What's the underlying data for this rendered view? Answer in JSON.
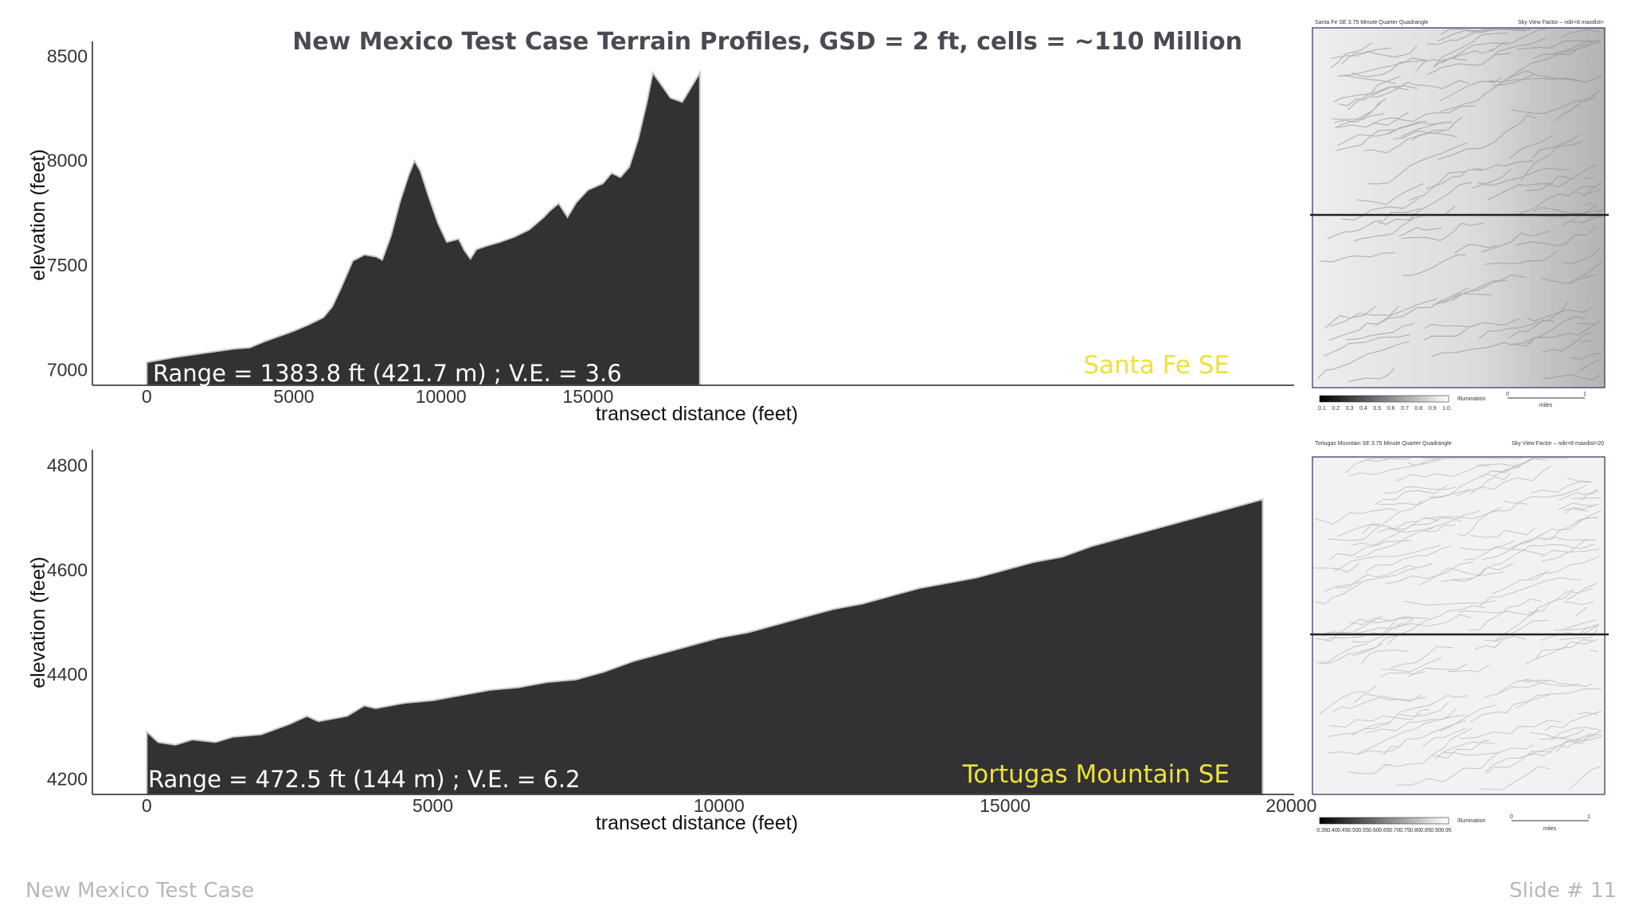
{
  "slide": {
    "title": "New Mexico Test Case Terrain Profiles, GSD = 2 ft, cells = ~110 Million",
    "footer_left": "New Mexico Test Case",
    "footer_right": "Slide #  11"
  },
  "colors": {
    "profile_fill": "#323234",
    "label_yellow": "#f0e03a",
    "map_frame_blue": "#3b4fd6"
  },
  "chart_data": [
    {
      "type": "area",
      "site": "Santa Fe SE",
      "range_text": "Range = 1383.8 ft (421.7 m) ;  V.E. = 3.6",
      "xlabel": "transect distance (feet)",
      "ylabel": "elevation (feet)",
      "xlim": [
        -1850,
        39000
      ],
      "ylim": [
        6925,
        8570
      ],
      "xticks": [
        0,
        5000,
        10000,
        15000
      ],
      "yticks": [
        7000,
        7500,
        8000,
        8500
      ],
      "x": [
        0,
        1000,
        2000,
        3000,
        3500,
        4000,
        5000,
        5500,
        6000,
        6300,
        6600,
        7000,
        7400,
        7800,
        8000,
        8300,
        8600,
        8900,
        9100,
        9300,
        9600,
        9900,
        10200,
        10600,
        10800,
        11000,
        11200,
        11500,
        12000,
        12500,
        13000,
        13500,
        13700,
        14000,
        14300,
        14600,
        15000,
        15500,
        15800,
        16100,
        16400,
        16700,
        17000,
        17200,
        17500,
        17800,
        18200,
        18500,
        18800
      ],
      "y": [
        7035,
        7060,
        7080,
        7100,
        7105,
        7135,
        7185,
        7215,
        7250,
        7300,
        7390,
        7520,
        7550,
        7540,
        7525,
        7640,
        7800,
        7930,
        8000,
        7950,
        7820,
        7700,
        7610,
        7625,
        7570,
        7530,
        7575,
        7590,
        7610,
        7635,
        7670,
        7730,
        7760,
        7795,
        7730,
        7800,
        7860,
        7890,
        7940,
        7920,
        7970,
        8100,
        8280,
        8420,
        8360,
        8300,
        8280,
        8350,
        8420
      ]
    },
    {
      "type": "area",
      "site": "Tortugas Mountain SE",
      "range_text": "Range = 472.5 ft (144 m) ; V.E. = 6.2",
      "xlabel": "transect distance (feet)",
      "ylabel": "elevation (feet)",
      "xlim": [
        -950,
        20050
      ],
      "ylim": [
        4170,
        4830
      ],
      "xticks": [
        0,
        5000,
        10000,
        15000,
        20000
      ],
      "yticks": [
        4200,
        4400,
        4600,
        4800
      ],
      "x": [
        0,
        200,
        500,
        800,
        1200,
        1500,
        2000,
        2500,
        2800,
        3000,
        3500,
        3800,
        4000,
        4500,
        5000,
        5500,
        6000,
        6500,
        7000,
        7500,
        8000,
        8500,
        9000,
        9500,
        10000,
        10500,
        11000,
        11500,
        12000,
        12500,
        13000,
        13500,
        14000,
        14500,
        15000,
        15500,
        16000,
        16500,
        17000,
        17500,
        18000,
        18500,
        19000,
        19500
      ],
      "y": [
        4290,
        4270,
        4265,
        4275,
        4270,
        4280,
        4285,
        4305,
        4320,
        4310,
        4320,
        4340,
        4335,
        4345,
        4350,
        4360,
        4370,
        4375,
        4385,
        4390,
        4405,
        4425,
        4440,
        4455,
        4470,
        4480,
        4495,
        4510,
        4525,
        4535,
        4550,
        4565,
        4575,
        4585,
        4600,
        4615,
        4625,
        4645,
        4660,
        4675,
        4690,
        4705,
        4720,
        4735
      ]
    }
  ],
  "maps": [
    {
      "title": "Santa Fe SE 3.75 Minute Quarter Quadrangle",
      "caption": "Sky View Factor – ndir=8 maxdist=",
      "legend_label": "Illumination",
      "legend_ticks": [
        "0.1",
        "0.2",
        "0.3",
        "0.4",
        "0.5",
        "0.6",
        "0.7",
        "0.8",
        "0.9",
        "1.0"
      ],
      "scale_start": "0",
      "scale_end": "1",
      "scale_unit": "miles"
    },
    {
      "title": "Tortugas Mountain SE 3.75 Minute Quarter Quadrangle",
      "caption": "Sky View Factor – ndir=8 maxdist=20",
      "legend_label": "Illumination",
      "legend_ticks": [
        "0.35",
        "0.40",
        "0.45",
        "0.50",
        "0.55",
        "0.60",
        "0.65",
        "0.70",
        "0.75",
        "0.80",
        "0.85",
        "0.90",
        "0.95"
      ],
      "scale_start": "0",
      "scale_end": "1",
      "scale_unit": "miles"
    }
  ]
}
